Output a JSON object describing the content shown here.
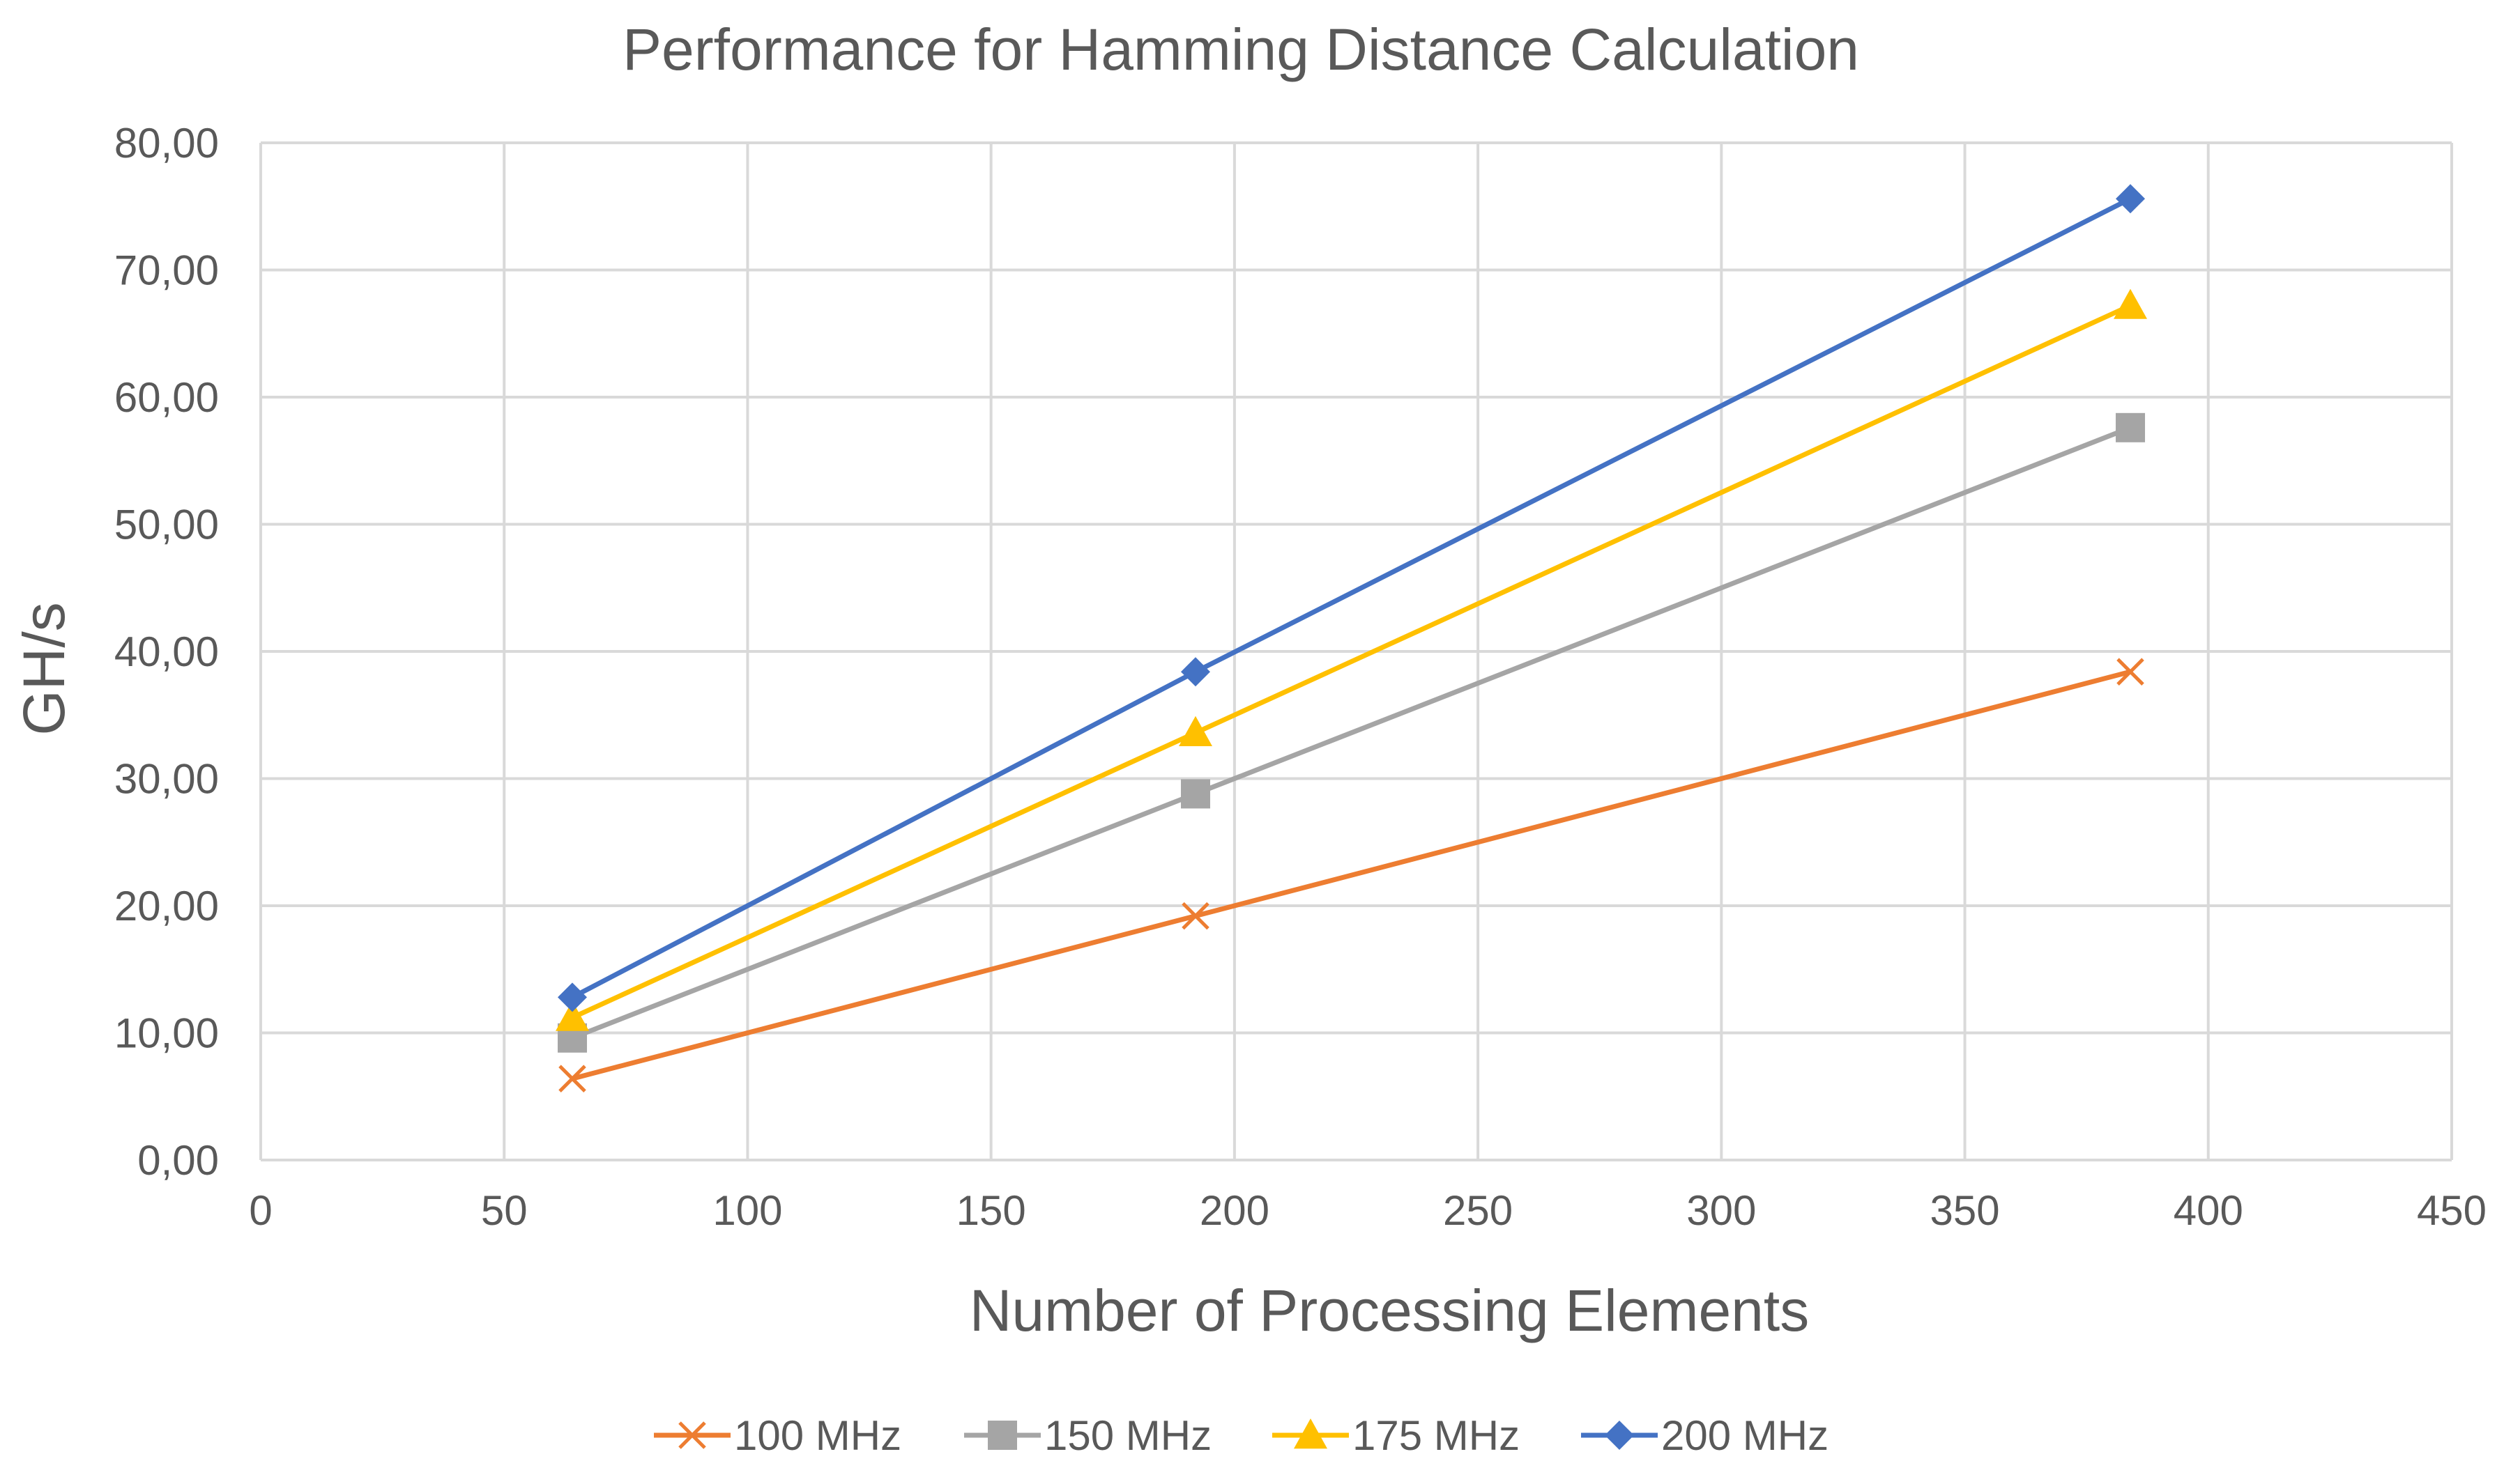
{
  "chart_data": {
    "type": "line",
    "title": "Performance for Hamming Distance Calculation",
    "xlabel": "Number of Processing Elements",
    "ylabel": "GH/s",
    "xlim": [
      0,
      450
    ],
    "ylim": [
      0,
      80
    ],
    "grid": true,
    "legend": "bottom",
    "x_ticks": [
      "0",
      "50",
      "100",
      "150",
      "200",
      "250",
      "300",
      "350",
      "400",
      "450"
    ],
    "y_ticks": [
      "0,00",
      "10,00",
      "20,00",
      "30,00",
      "40,00",
      "50,00",
      "60,00",
      "70,00",
      "80,00"
    ],
    "x": [
      64,
      192,
      384
    ],
    "series": [
      {
        "name": "100 MHz",
        "values": [
          6.4,
          19.2,
          38.4
        ],
        "color": "#ED7D31",
        "marker": "x-icon"
      },
      {
        "name": "150 MHz",
        "values": [
          9.6,
          28.8,
          57.6
        ],
        "color": "#A5A5A5",
        "marker": "square-icon"
      },
      {
        "name": "175 MHz",
        "values": [
          11.2,
          33.6,
          67.2
        ],
        "color": "#FFC000",
        "marker": "triangle-icon"
      },
      {
        "name": "200 MHz",
        "values": [
          12.8,
          38.4,
          75.6
        ],
        "color": "#4472C4",
        "marker": "diamond-icon"
      }
    ]
  }
}
